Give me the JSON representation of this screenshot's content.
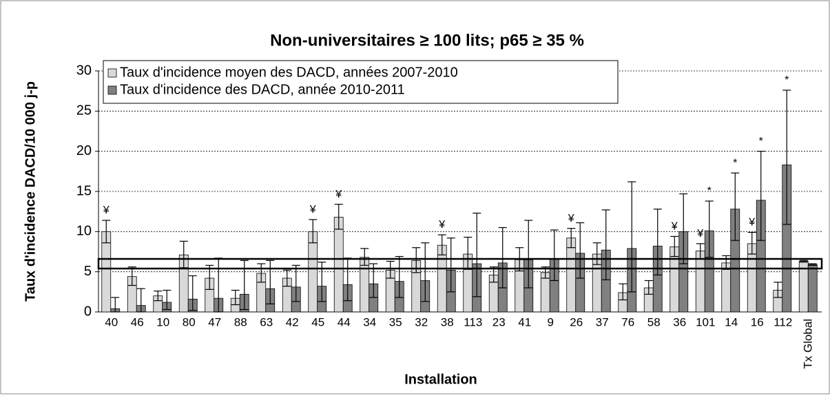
{
  "chart_data": {
    "type": "bar",
    "title": "Non-universitaires ≥ 100 lits; p65 ≥ 35 %",
    "x_label": "Installation",
    "y_label": "Taux d'incidence DACD/10 000 j-p",
    "categories": [
      "40",
      "46",
      "10",
      "80",
      "47",
      "88",
      "63",
      "42",
      "45",
      "44",
      "34",
      "35",
      "32",
      "38",
      "113",
      "23",
      "41",
      "9",
      "26",
      "37",
      "76",
      "58",
      "36",
      "101",
      "14",
      "16",
      "112",
      "Tx Global"
    ],
    "series": [
      {
        "name": "Taux d'incidence moyen des DACD, années 2007-2010",
        "color": "#d9d9d9",
        "values": [
          10.0,
          4.4,
          2.0,
          7.1,
          4.2,
          1.7,
          4.8,
          4.2,
          10.0,
          11.8,
          6.8,
          5.2,
          6.4,
          8.3,
          7.2,
          4.6,
          6.5,
          4.9,
          9.2,
          7.2,
          2.4,
          3.0,
          8.1,
          7.6,
          6.1,
          8.5,
          2.7,
          6.3
        ],
        "ci_upper": [
          11.4,
          5.6,
          2.6,
          8.8,
          5.8,
          2.7,
          6.0,
          5.2,
          11.5,
          13.4,
          7.9,
          6.3,
          8.0,
          9.6,
          9.3,
          5.6,
          8.0,
          5.6,
          10.4,
          8.6,
          3.5,
          3.9,
          9.4,
          8.5,
          7.0,
          9.9,
          3.7,
          6.4
        ],
        "ci_lower": [
          8.6,
          3.3,
          1.4,
          5.5,
          2.8,
          0.9,
          3.7,
          3.2,
          8.6,
          10.3,
          5.8,
          4.2,
          4.9,
          7.1,
          5.3,
          3.7,
          5.1,
          4.2,
          8.0,
          5.9,
          1.5,
          2.2,
          6.9,
          6.6,
          5.3,
          7.2,
          1.8,
          6.2
        ],
        "markers": [
          "¥",
          null,
          null,
          null,
          null,
          null,
          null,
          null,
          "¥",
          "¥",
          null,
          null,
          null,
          "¥",
          null,
          null,
          null,
          null,
          "¥",
          null,
          null,
          null,
          "¥",
          "¥",
          null,
          "¥",
          null,
          null
        ]
      },
      {
        "name": "Taux d'incidence des DACD, année 2010-2011",
        "color": "#808080",
        "values": [
          0.4,
          0.8,
          1.2,
          1.6,
          1.7,
          2.2,
          2.9,
          3.1,
          3.2,
          3.4,
          3.5,
          3.8,
          3.9,
          5.2,
          6.0,
          6.1,
          6.5,
          6.6,
          7.3,
          7.7,
          7.9,
          8.2,
          10.0,
          10.1,
          12.8,
          13.9,
          18.3,
          5.9
        ],
        "ci_upper": [
          1.8,
          2.9,
          2.7,
          4.5,
          6.7,
          6.4,
          6.4,
          5.8,
          6.2,
          6.7,
          6.0,
          6.9,
          8.6,
          9.2,
          12.3,
          10.5,
          11.4,
          10.2,
          11.1,
          12.7,
          16.2,
          12.8,
          14.7,
          13.8,
          17.3,
          20.0,
          27.6,
          6.0
        ],
        "ci_lower": [
          0.0,
          0.0,
          0.3,
          0.2,
          0.0,
          0.3,
          1.0,
          1.3,
          1.3,
          1.4,
          1.8,
          1.8,
          1.3,
          2.5,
          1.9,
          3.0,
          3.0,
          3.9,
          4.2,
          4.0,
          2.5,
          4.6,
          6.0,
          6.8,
          8.9,
          8.9,
          10.9,
          5.8
        ],
        "markers": [
          null,
          null,
          null,
          null,
          null,
          null,
          null,
          null,
          null,
          null,
          null,
          null,
          null,
          null,
          null,
          null,
          null,
          null,
          null,
          null,
          null,
          null,
          null,
          "*",
          "*",
          "*",
          "*",
          null
        ]
      }
    ],
    "reference_band": [
      5.4,
      6.6
    ],
    "ylim": [
      0,
      30
    ],
    "yticks": [
      0,
      5,
      10,
      15,
      20,
      25,
      30
    ],
    "grid": true
  }
}
